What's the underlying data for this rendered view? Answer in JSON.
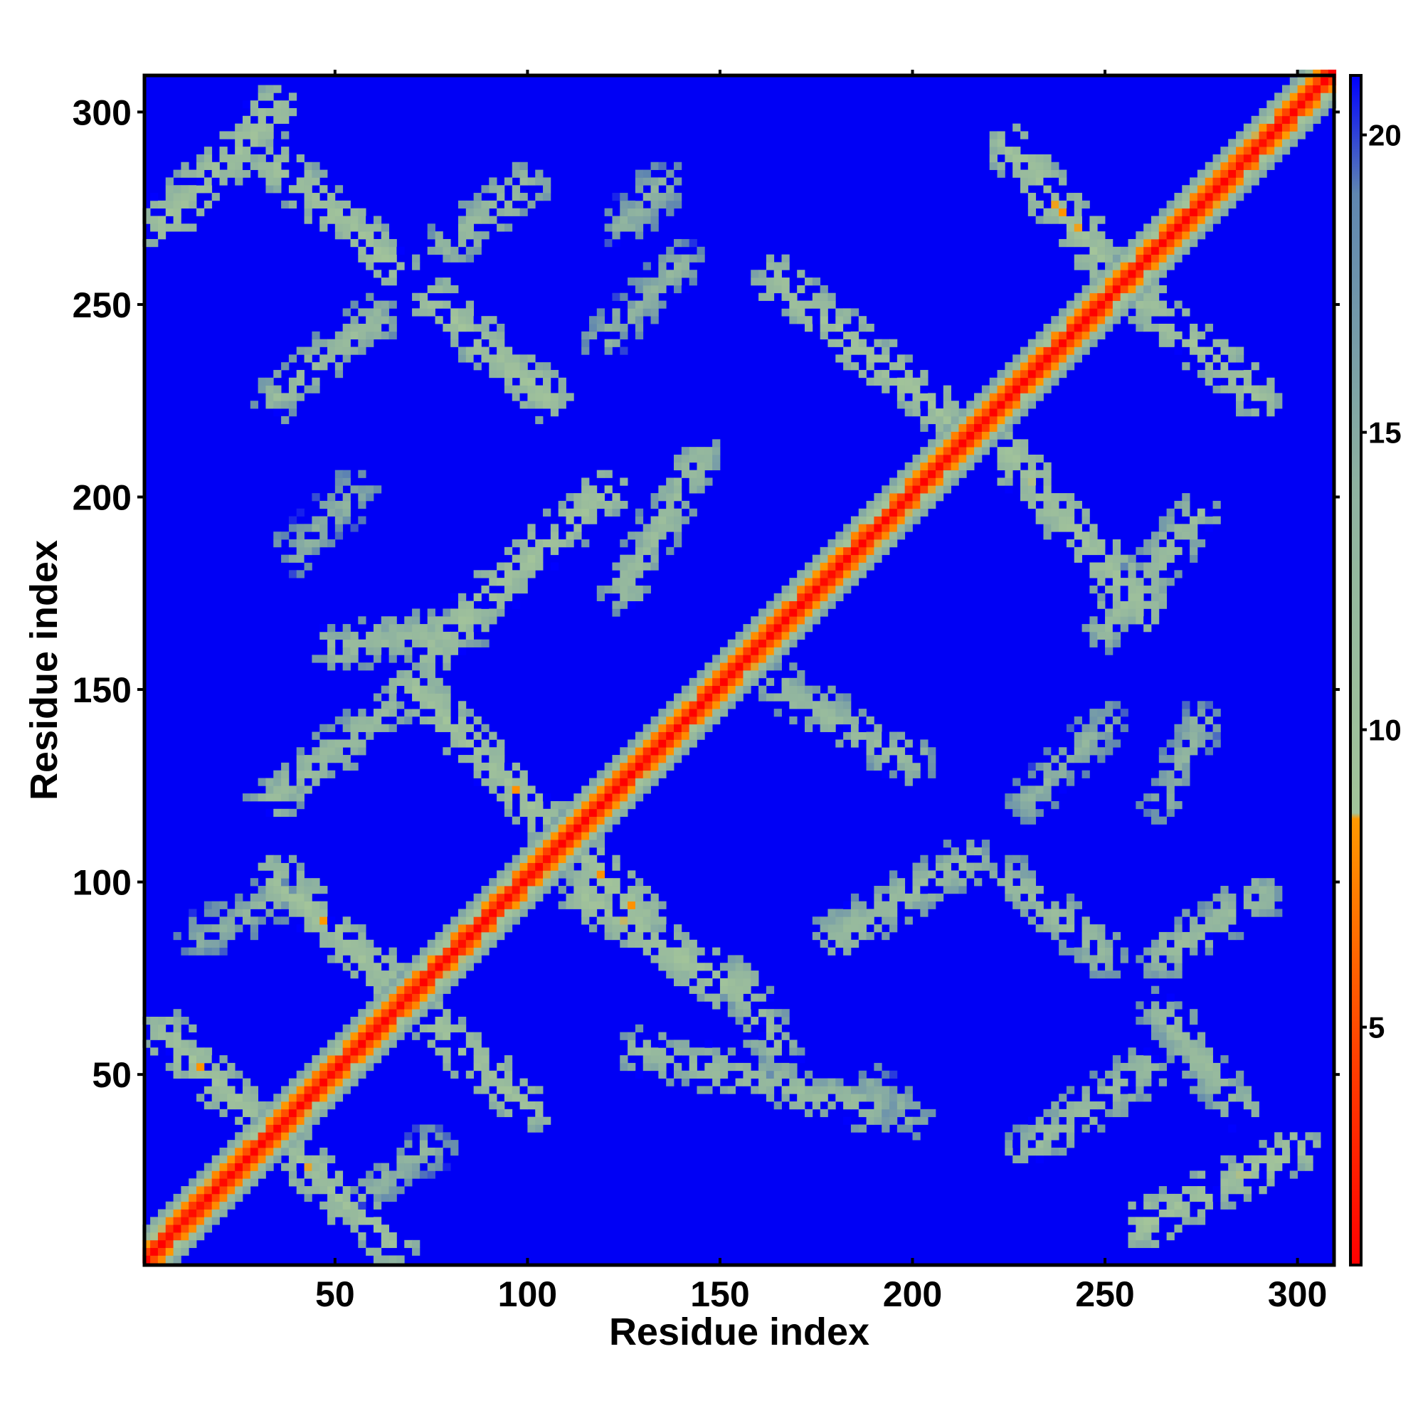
{
  "chart_data": {
    "type": "heatmap",
    "title": "",
    "xlabel": "Residue index",
    "ylabel": "Residue index",
    "xlim": [
      1,
      309
    ],
    "ylim": [
      1,
      309
    ],
    "n_residues": 309,
    "x_ticks": [
      50,
      100,
      150,
      200,
      250,
      300
    ],
    "y_ticks": [
      50,
      100,
      150,
      200,
      250,
      300
    ],
    "colorbar": {
      "range": [
        1,
        21
      ],
      "ticks": [
        5,
        10,
        15,
        20
      ],
      "stops": [
        {
          "value": 1,
          "color": "#ff0000"
        },
        {
          "value": 4.5,
          "color": "#ff4000"
        },
        {
          "value": 8.5,
          "color": "#ff9900"
        },
        {
          "value": 8.6,
          "color": "#a3c49a"
        },
        {
          "value": 14,
          "color": "#8fb3a0"
        },
        {
          "value": 19,
          "color": "#5f86b0"
        },
        {
          "value": 21,
          "color": "#0000ff"
        }
      ]
    },
    "background_color": "#0000f5",
    "diagonal": {
      "band_min_value": 1,
      "band_max_value": 17
    },
    "contact_bands": [
      {
        "x": [
          5,
          65
        ],
        "y": [
          60,
          5
        ],
        "peak": 9
      },
      {
        "x": [
          35,
          100
        ],
        "y": [
          100,
          40
        ],
        "peak": 9
      },
      {
        "x": [
          70,
          130
        ],
        "y": [
          150,
          90
        ],
        "peak": 9
      },
      {
        "x": [
          115,
          155
        ],
        "y": [
          95,
          70
        ],
        "peak": 9
      },
      {
        "x": [
          130,
          190
        ],
        "y": [
          55,
          40
        ],
        "peak": 11
      },
      {
        "x": [
          75,
          120
        ],
        "y": [
          160,
          200
        ],
        "peak": 9
      },
      {
        "x": [
          33,
          65
        ],
        "y": [
          120,
          145
        ],
        "peak": 11
      },
      {
        "x": [
          125,
          145
        ],
        "y": [
          175,
          210
        ],
        "peak": 11
      },
      {
        "x": [
          165,
          200
        ],
        "y": [
          150,
          130
        ],
        "peak": 11
      },
      {
        "x": [
          180,
          215
        ],
        "y": [
          85,
          105
        ],
        "peak": 11
      },
      {
        "x": [
          225,
          250
        ],
        "y": [
          100,
          80
        ],
        "peak": 11
      },
      {
        "x": [
          265,
          290
        ],
        "y": [
          80,
          95
        ],
        "peak": 11
      },
      {
        "x": [
          230,
          260
        ],
        "y": [
          30,
          50
        ],
        "peak": 11
      },
      {
        "x": [
          265,
          285
        ],
        "y": [
          65,
          40
        ],
        "peak": 11
      },
      {
        "x": [
          260,
          300
        ],
        "y": [
          10,
          30
        ],
        "peak": 9
      },
      {
        "x": [
          5,
          35
        ],
        "y": [
          270,
          300
        ],
        "peak": 9
      },
      {
        "x": [
          35,
          65
        ],
        "y": [
          285,
          260
        ],
        "peak": 9
      },
      {
        "x": [
          35,
          60
        ],
        "y": [
          225,
          245
        ],
        "peak": 11
      },
      {
        "x": [
          75,
          105
        ],
        "y": [
          250,
          225
        ],
        "peak": 9
      },
      {
        "x": [
          80,
          100
        ],
        "y": [
          265,
          280
        ],
        "peak": 11
      },
      {
        "x": [
          165,
          215
        ],
        "y": [
          255,
          215
        ],
        "peak": 9
      },
      {
        "x": [
          225,
          250
        ],
        "y": [
          290,
          260
        ],
        "peak": 9
      },
      {
        "x": [
          260,
          290
        ],
        "y": [
          250,
          225
        ],
        "peak": 9
      },
      {
        "x": [
          225,
          260
        ],
        "y": [
          210,
          170
        ],
        "peak": 9
      },
      {
        "x": [
          250,
          275
        ],
        "y": [
          165,
          195
        ],
        "peak": 11
      },
      {
        "x": [
          50,
          85
        ],
        "y": [
          160,
          165
        ],
        "peak": 11
      },
      {
        "x": [
          155,
          165
        ],
        "y": [
          75,
          55
        ],
        "peak": 11
      },
      {
        "x": [
          15,
          35
        ],
        "y": [
          85,
          95
        ],
        "peak": 13
      },
      {
        "x": [
          60,
          75
        ],
        "y": [
          20,
          30
        ],
        "peak": 13
      },
      {
        "x": [
          190,
          200
        ],
        "y": [
          45,
          38
        ],
        "peak": 13
      },
      {
        "x": [
          230,
          250
        ],
        "y": [
          120,
          140
        ],
        "peak": 13
      },
      {
        "x": [
          265,
          275
        ],
        "y": [
          120,
          140
        ],
        "peak": 13
      },
      {
        "x": [
          120,
          140
        ],
        "y": [
          240,
          260
        ],
        "peak": 13
      },
      {
        "x": [
          125,
          135
        ],
        "y": [
          270,
          280
        ],
        "peak": 13
      },
      {
        "x": [
          40,
          55
        ],
        "y": [
          185,
          200
        ],
        "peak": 13
      }
    ]
  }
}
